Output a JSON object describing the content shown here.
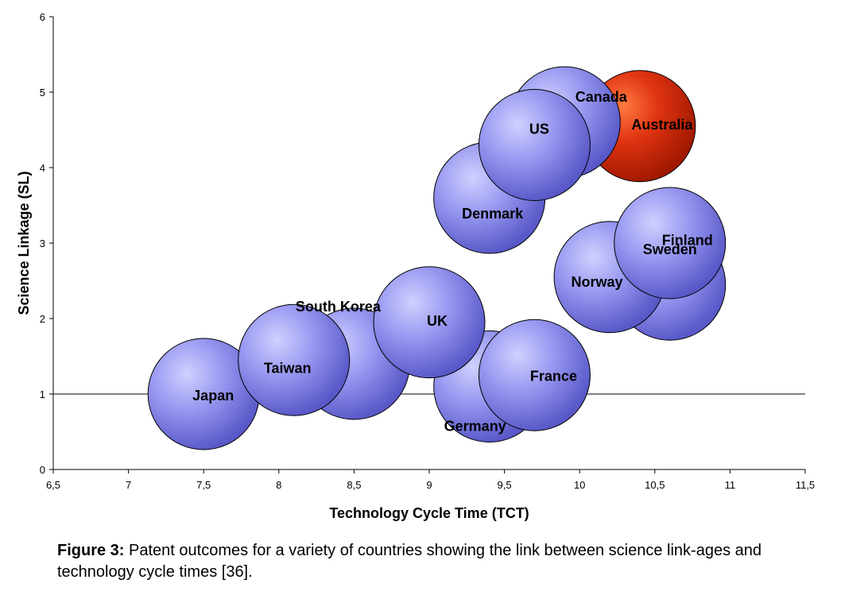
{
  "chart_data": {
    "type": "bubble",
    "xlabel": "Technology Cycle Time (TCT)",
    "ylabel": "Science Linkage (SL)",
    "xlim": [
      6.5,
      11.5
    ],
    "ylim": [
      0,
      6
    ],
    "xticks": [
      "6,5",
      "7",
      "7,5",
      "8",
      "8,5",
      "9",
      "9,5",
      "10",
      "10,5",
      "11",
      "11,5"
    ],
    "yticks": [
      "0",
      "1",
      "2",
      "3",
      "4",
      "5",
      "6"
    ],
    "reference_line_y": 1,
    "points": [
      {
        "label": "Japan",
        "x": 7.5,
        "y": 1.0,
        "color": "#8f8fee"
      },
      {
        "label": "South Korea",
        "x": 8.5,
        "y": 1.4,
        "color": "#8f8fee"
      },
      {
        "label": "Taiwan",
        "x": 8.1,
        "y": 1.45,
        "color": "#8f8fee"
      },
      {
        "label": "Germany",
        "x": 9.4,
        "y": 1.1,
        "color": "#8f8fee"
      },
      {
        "label": "France",
        "x": 9.7,
        "y": 1.25,
        "color": "#8f8fee"
      },
      {
        "label": "UK",
        "x": 9.0,
        "y": 1.95,
        "color": "#8f8fee"
      },
      {
        "label": "Denmark",
        "x": 9.4,
        "y": 3.6,
        "color": "#8f8fee"
      },
      {
        "label": "Australia",
        "x": 10.4,
        "y": 4.55,
        "color": "#e03010"
      },
      {
        "label": "Canada",
        "x": 9.9,
        "y": 4.6,
        "color": "#8f8fee"
      },
      {
        "label": "US",
        "x": 9.7,
        "y": 4.3,
        "color": "#8f8fee"
      },
      {
        "label": "Finland",
        "x": 10.6,
        "y": 2.45,
        "color": "#8f8fee"
      },
      {
        "label": "Norway",
        "x": 10.2,
        "y": 2.55,
        "color": "#8f8fee"
      },
      {
        "label": "Sweden",
        "x": 10.6,
        "y": 3.0,
        "color": "#8f8fee"
      }
    ]
  },
  "caption": {
    "label": "Figure 3:",
    "text": " Patent outcomes for a variety of countries showing the link between science link-ages and technology cycle times [36]."
  }
}
